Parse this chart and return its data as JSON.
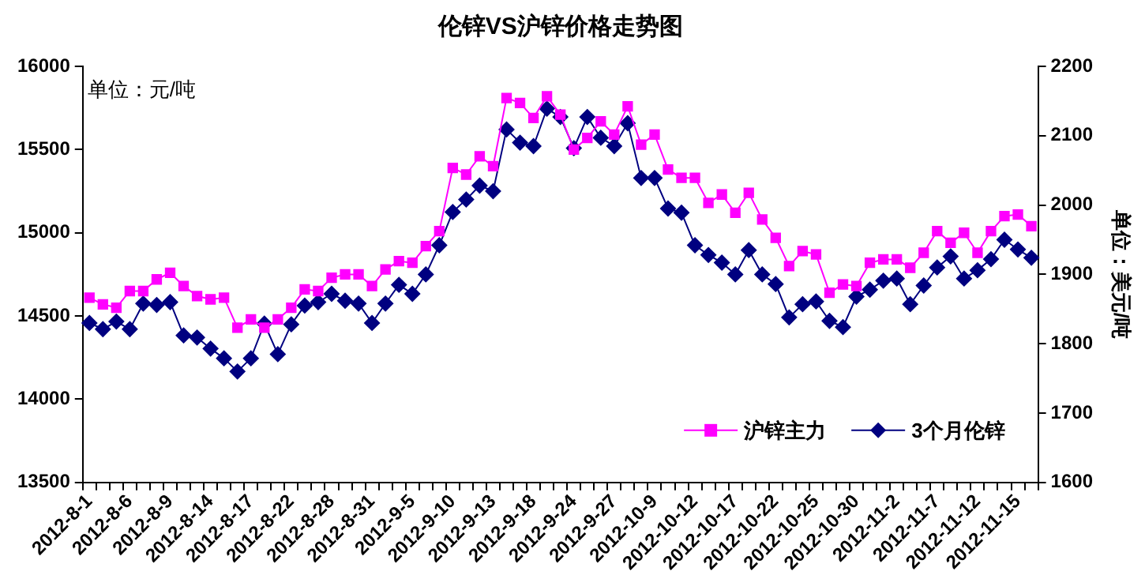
{
  "chart_data": {
    "type": "line",
    "title": "伦锌VS沪锌价格走势图",
    "ylabel": "单位：元/吨",
    "y2label": "单位：美元/吨",
    "categories": [
      "2012-8-1",
      null,
      null,
      "2012-8-6",
      null,
      null,
      "2012-8-9",
      null,
      null,
      "2012-8-14",
      null,
      null,
      "2012-8-17",
      null,
      null,
      "2012-8-22",
      null,
      null,
      "2012-8-28",
      null,
      null,
      "2012-8-31",
      null,
      null,
      "2012-9-5",
      null,
      null,
      "2012-9-10",
      null,
      null,
      "2012-9-13",
      null,
      null,
      "2012-9-18",
      null,
      null,
      "2012-9-24",
      null,
      null,
      "2012-9-27",
      null,
      null,
      "2012-10-9",
      null,
      null,
      "2012-10-12",
      null,
      null,
      "2012-10-17",
      null,
      null,
      "2012-10-22",
      null,
      null,
      "2012-10-25",
      null,
      null,
      "2012-10-30",
      null,
      null,
      "2012-11-2",
      null,
      null,
      "2012-11-7",
      null,
      null,
      "2012-11-12",
      null,
      null,
      "2012-11-15",
      null
    ],
    "series": [
      {
        "name": "沪锌主力",
        "color": "#ff00ff",
        "marker": "square",
        "values": [
          14610,
          14570,
          14550,
          14650,
          14650,
          14720,
          14760,
          14680,
          14620,
          14600,
          14610,
          14430,
          14480,
          14430,
          14480,
          14550,
          14660,
          14650,
          14730,
          14750,
          14750,
          14680,
          14780,
          14830,
          14820,
          14920,
          15010,
          15390,
          15350,
          15460,
          15400,
          15810,
          15780,
          15690,
          15820,
          15710,
          15500,
          15570,
          15670,
          15590,
          15760,
          15530,
          15590,
          15380,
          15330,
          15330,
          15180,
          15230,
          15120,
          15240,
          15080,
          14970,
          14800,
          14890,
          14870,
          14640,
          14690,
          14680,
          14820,
          14840,
          14840,
          14790,
          14880,
          15010,
          14940,
          15000,
          14880,
          15010,
          15100,
          15110,
          15040
        ]
      },
      {
        "name": "3个月伦锌",
        "color": "#000080",
        "marker": "diamond",
        "axis": "y2",
        "values": [
          1830,
          1821,
          1832,
          1821,
          1858,
          1856,
          1860,
          1812,
          1809,
          1793,
          1779,
          1760,
          1779,
          1829,
          1785,
          1828,
          1855,
          1860,
          1872,
          1862,
          1858,
          1830,
          1858,
          1885,
          1872,
          1900,
          1942,
          1990,
          2008,
          2028,
          2020,
          2109,
          2090,
          2085,
          2139,
          2127,
          2082,
          2127,
          2097,
          2085,
          2118,
          2039,
          2039,
          1995,
          1989,
          1942,
          1928,
          1917,
          1900,
          1935,
          1900,
          1886,
          1838,
          1857,
          1861,
          1833,
          1824,
          1868,
          1878,
          1891,
          1894,
          1857,
          1884,
          1910,
          1926,
          1894,
          1906,
          1922,
          1950,
          1936,
          1924
        ]
      }
    ],
    "ylim": [
      13500,
      16000
    ],
    "yticks": [
      13500,
      14000,
      14500,
      15000,
      15500,
      16000
    ],
    "y2lim": [
      1600,
      2200
    ],
    "y2ticks": [
      1600,
      1700,
      1800,
      1900,
      2000,
      2100,
      2200
    ],
    "grid": false,
    "legend": "bottom right",
    "line_style": "solid"
  }
}
